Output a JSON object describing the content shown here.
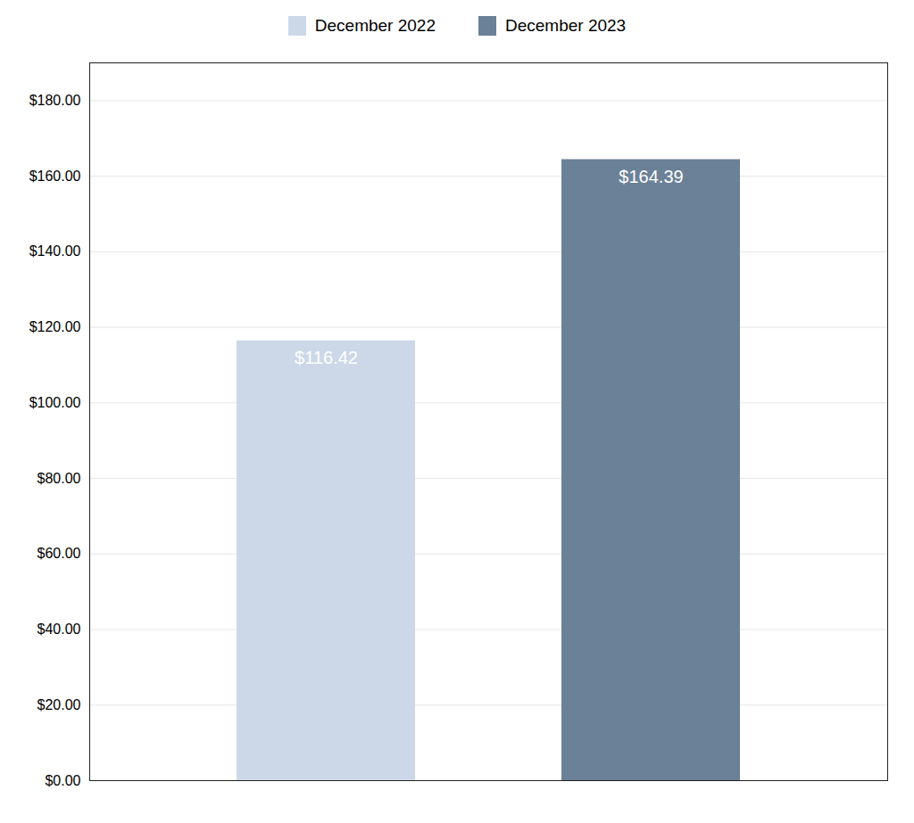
{
  "chart_data": {
    "type": "bar",
    "categories": [
      "December 2022",
      "December 2023"
    ],
    "values": [
      116.42,
      164.39
    ],
    "value_labels": [
      "$116.42",
      "$164.39"
    ],
    "colors": [
      "#ccd8e8",
      "#6b8197"
    ],
    "ylim": [
      0,
      190
    ],
    "yticks": [
      {
        "value": 0,
        "label": "$0.00"
      },
      {
        "value": 20,
        "label": "$20.00"
      },
      {
        "value": 40,
        "label": "$40.00"
      },
      {
        "value": 60,
        "label": "$60.00"
      },
      {
        "value": 80,
        "label": "$80.00"
      },
      {
        "value": 100,
        "label": "$100.00"
      },
      {
        "value": 120,
        "label": "$120.00"
      },
      {
        "value": 140,
        "label": "$140.00"
      },
      {
        "value": 160,
        "label": "$160.00"
      },
      {
        "value": 180,
        "label": "$180.00"
      }
    ],
    "grid": true,
    "legend": "top",
    "data_labels": true,
    "tick_labels": "y"
  }
}
